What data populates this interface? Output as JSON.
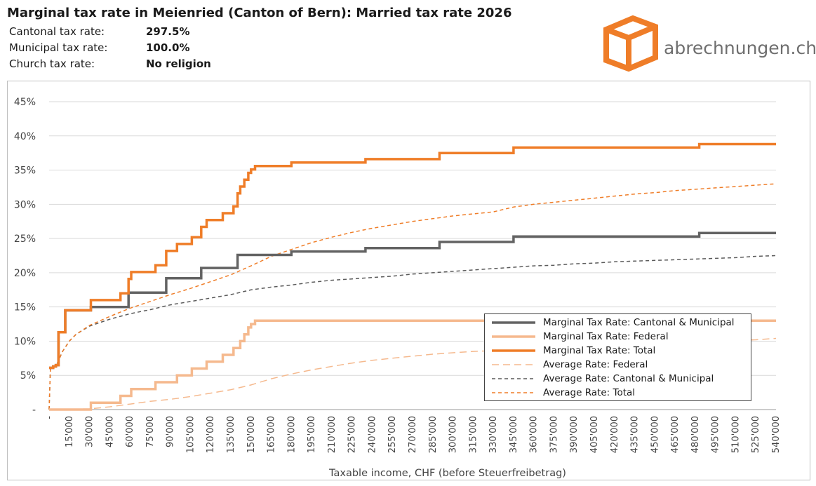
{
  "title": "Marginal tax rate in Meienried (Canton of Bern): Married tax rate 2026",
  "info": [
    {
      "label": "Cantonal tax rate:",
      "value": "297.5%"
    },
    {
      "label": "Municipal tax rate:",
      "value": "100.0%"
    },
    {
      "label": "Church tax rate:",
      "value": "No religion"
    }
  ],
  "brand": {
    "name": "abrechnungen.ch",
    "color": "#ef7d28"
  },
  "chart_data": {
    "type": "line",
    "xlabel": "Taxable income, CHF (before Steuerfreibetrag)",
    "ylabel": "",
    "xlim": [
      0,
      540000
    ],
    "ylim": [
      0,
      0.45
    ],
    "x_ticks": [
      "-",
      "15'000",
      "30'000",
      "45'000",
      "60'000",
      "75'000",
      "90'000",
      "105'000",
      "120'000",
      "135'000",
      "150'000",
      "165'000",
      "180'000",
      "195'000",
      "210'000",
      "225'000",
      "240'000",
      "255'000",
      "270'000",
      "285'000",
      "300'000",
      "315'000",
      "330'000",
      "345'000",
      "360'000",
      "375'000",
      "390'000",
      "405'000",
      "420'000",
      "435'000",
      "450'000",
      "465'000",
      "480'000",
      "495'000",
      "510'000",
      "525'000",
      "540'000"
    ],
    "y_ticks": [
      "-",
      "5%",
      "10%",
      "15%",
      "20%",
      "25%",
      "30%",
      "35%",
      "40%",
      "45%"
    ],
    "grid": "horizontal",
    "legend_position": "bottom-right",
    "series": [
      {
        "name": "Marginal Tax Rate: Cantonal & Municipal",
        "color": "#636363",
        "style": "solid",
        "x": [
          0,
          3000,
          5000,
          7000,
          12000,
          29000,
          31000,
          59000,
          87000,
          113000,
          140000,
          160000,
          180000,
          235000,
          290000,
          345000,
          483000,
          540000
        ],
        "y": [
          0.061,
          0.063,
          0.065,
          0.113,
          0.145,
          0.145,
          0.15,
          0.171,
          0.192,
          0.207,
          0.226,
          0.226,
          0.231,
          0.236,
          0.245,
          0.253,
          0.258,
          0.258
        ]
      },
      {
        "name": "Marginal Tax Rate: Federal",
        "color": "#f5b98e",
        "style": "solid",
        "x": [
          0,
          29000,
          31000,
          53000,
          61000,
          79000,
          95000,
          106000,
          117000,
          129000,
          137000,
          142000,
          145000,
          148000,
          150000,
          153000,
          540000
        ],
        "y": [
          0,
          0,
          0.01,
          0.02,
          0.03,
          0.04,
          0.05,
          0.06,
          0.07,
          0.08,
          0.09,
          0.1,
          0.11,
          0.12,
          0.125,
          0.13,
          0.13
        ]
      },
      {
        "name": "Marginal Tax Rate: Total",
        "color": "#ef7d28",
        "style": "solid",
        "x": [
          0,
          3000,
          5000,
          7000,
          12000,
          29000,
          31000,
          53000,
          59000,
          61000,
          79000,
          87000,
          95000,
          106000,
          113000,
          117000,
          129000,
          137000,
          140000,
          142000,
          145000,
          148000,
          150000,
          153000,
          180000,
          235000,
          290000,
          345000,
          483000,
          540000
        ],
        "y": [
          0.061,
          0.063,
          0.065,
          0.113,
          0.145,
          0.145,
          0.16,
          0.17,
          0.191,
          0.201,
          0.211,
          0.232,
          0.242,
          0.252,
          0.267,
          0.277,
          0.287,
          0.297,
          0.316,
          0.326,
          0.336,
          0.346,
          0.351,
          0.356,
          0.361,
          0.366,
          0.375,
          0.383,
          0.388,
          0.388
        ]
      },
      {
        "name": "Average Rate: Federal",
        "color": "#f5b98e",
        "style": "long-dash",
        "x": [
          0,
          30000,
          45000,
          60000,
          75000,
          90000,
          105000,
          120000,
          135000,
          150000,
          165000,
          180000,
          195000,
          210000,
          225000,
          240000,
          255000,
          270000,
          285000,
          300000,
          315000,
          330000,
          345000,
          360000,
          375000,
          390000,
          405000,
          420000,
          435000,
          450000,
          465000,
          480000,
          495000,
          510000,
          525000,
          540000
        ],
        "y": [
          0,
          0.001,
          0.004,
          0.008,
          0.012,
          0.015,
          0.019,
          0.024,
          0.029,
          0.036,
          0.045,
          0.052,
          0.058,
          0.063,
          0.068,
          0.072,
          0.075,
          0.078,
          0.081,
          0.083,
          0.085,
          0.086,
          0.088,
          0.089,
          0.091,
          0.092,
          0.094,
          0.095,
          0.096,
          0.097,
          0.098,
          0.099,
          0.1,
          0.101,
          0.102,
          0.104
        ]
      },
      {
        "name": "Average Rate: Cantonal & Municipal",
        "color": "#5a5a5a",
        "style": "dash",
        "x": [
          0,
          1000,
          5000,
          10000,
          15000,
          20000,
          30000,
          45000,
          60000,
          75000,
          90000,
          105000,
          120000,
          135000,
          150000,
          165000,
          180000,
          195000,
          210000,
          225000,
          240000,
          255000,
          270000,
          285000,
          300000,
          315000,
          330000,
          345000,
          360000,
          375000,
          390000,
          405000,
          420000,
          435000,
          450000,
          465000,
          480000,
          495000,
          510000,
          525000,
          540000
        ],
        "y": [
          0,
          0.061,
          0.063,
          0.085,
          0.1,
          0.11,
          0.122,
          0.132,
          0.14,
          0.146,
          0.153,
          0.158,
          0.163,
          0.168,
          0.175,
          0.179,
          0.182,
          0.186,
          0.189,
          0.191,
          0.193,
          0.195,
          0.198,
          0.2,
          0.202,
          0.204,
          0.206,
          0.208,
          0.21,
          0.211,
          0.213,
          0.214,
          0.216,
          0.217,
          0.218,
          0.219,
          0.22,
          0.221,
          0.222,
          0.224,
          0.225
        ]
      },
      {
        "name": "Average Rate: Total",
        "color": "#ef7d28",
        "style": "dash",
        "x": [
          0,
          1000,
          5000,
          10000,
          15000,
          20000,
          30000,
          45000,
          60000,
          75000,
          90000,
          105000,
          120000,
          135000,
          150000,
          165000,
          180000,
          195000,
          210000,
          225000,
          240000,
          255000,
          270000,
          285000,
          300000,
          315000,
          330000,
          345000,
          360000,
          375000,
          390000,
          405000,
          420000,
          435000,
          450000,
          465000,
          480000,
          495000,
          510000,
          525000,
          540000
        ],
        "y": [
          0,
          0.061,
          0.063,
          0.085,
          0.1,
          0.11,
          0.123,
          0.136,
          0.148,
          0.158,
          0.168,
          0.177,
          0.187,
          0.197,
          0.21,
          0.224,
          0.234,
          0.244,
          0.252,
          0.259,
          0.265,
          0.27,
          0.275,
          0.279,
          0.283,
          0.286,
          0.289,
          0.296,
          0.3,
          0.303,
          0.306,
          0.309,
          0.312,
          0.315,
          0.317,
          0.32,
          0.322,
          0.324,
          0.326,
          0.328,
          0.33
        ]
      }
    ]
  }
}
